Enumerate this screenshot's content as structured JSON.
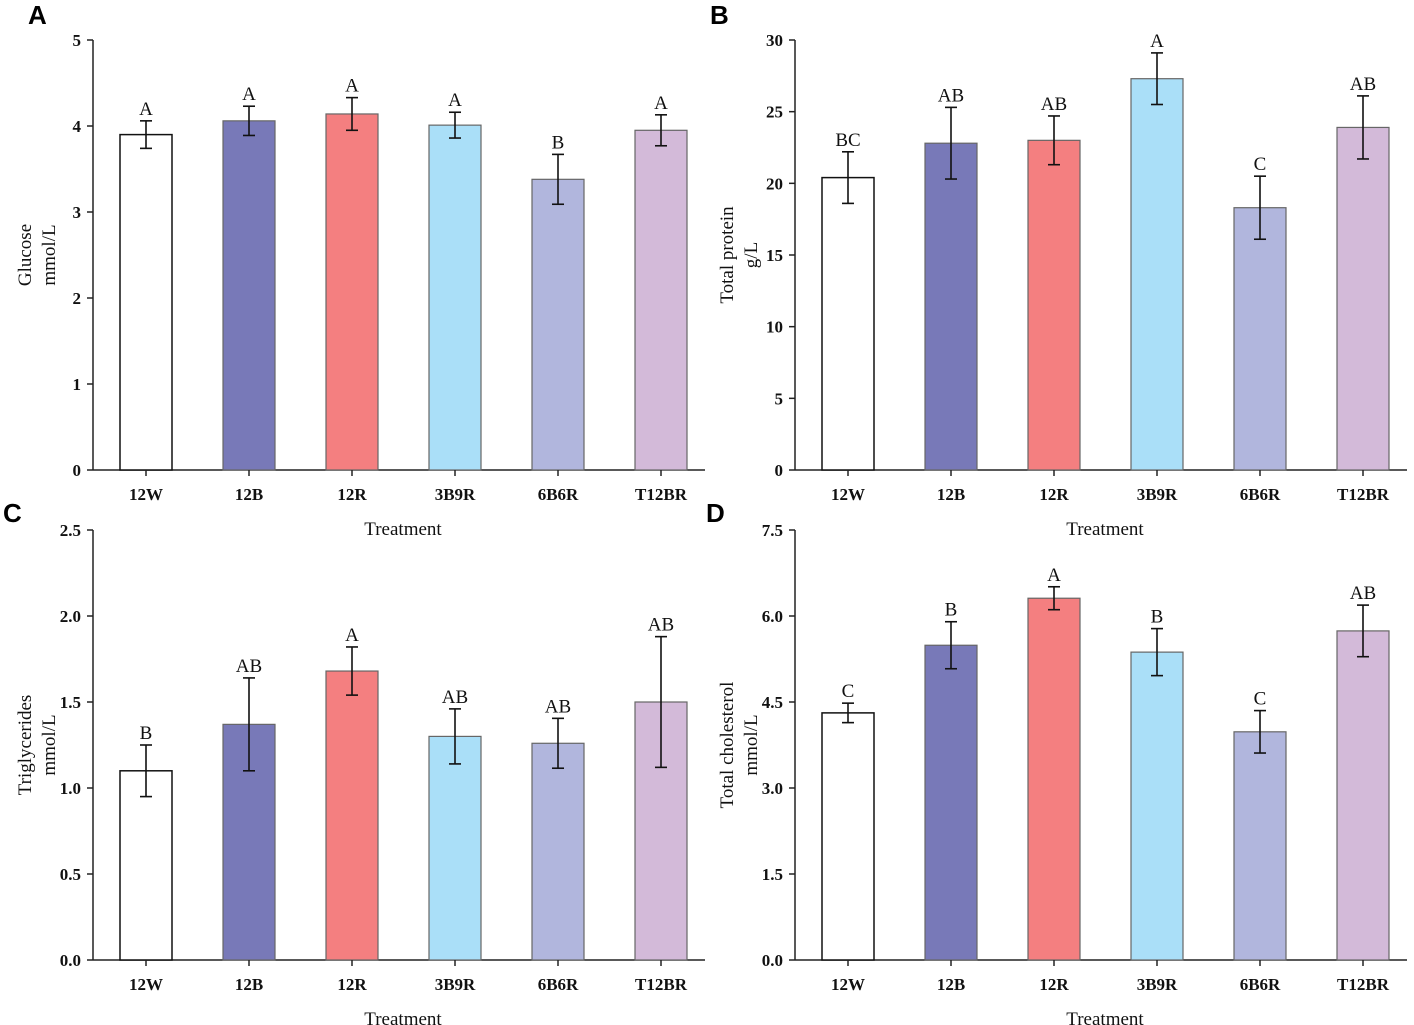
{
  "chart_data": [
    {
      "panel": "A",
      "type": "bar",
      "categories": [
        "12W",
        "12B",
        "12R",
        "3B9R",
        "6B6R",
        "T12BR"
      ],
      "values": [
        3.9,
        4.06,
        4.14,
        4.01,
        3.38,
        3.95
      ],
      "errors": [
        0.16,
        0.17,
        0.19,
        0.15,
        0.29,
        0.18
      ],
      "significance": [
        "A",
        "A",
        "A",
        "A",
        "B",
        "A"
      ],
      "ylabel": [
        "Glucose",
        "mmol/L"
      ],
      "xlabel": "Treatment",
      "ylim": [
        0,
        5
      ],
      "yticks": [
        "0",
        "1",
        "2",
        "3",
        "4",
        "5"
      ],
      "grid": false
    },
    {
      "panel": "B",
      "type": "bar",
      "categories": [
        "12W",
        "12B",
        "12R",
        "3B9R",
        "6B6R",
        "T12BR"
      ],
      "values": [
        20.4,
        22.8,
        23.0,
        27.3,
        18.3,
        23.9
      ],
      "errors": [
        1.8,
        2.5,
        1.7,
        1.8,
        2.2,
        2.2
      ],
      "significance": [
        "BC",
        "AB",
        "AB",
        "A",
        "C",
        "AB"
      ],
      "ylabel": [
        "Total protein",
        "g/L"
      ],
      "xlabel": "Treatment",
      "ylim": [
        0,
        30
      ],
      "yticks": [
        "0",
        "5",
        "10",
        "15",
        "20",
        "25",
        "30"
      ],
      "grid": false
    },
    {
      "panel": "C",
      "type": "bar",
      "categories": [
        "12W",
        "12B",
        "12R",
        "3B9R",
        "6B6R",
        "T12BR"
      ],
      "values": [
        1.1,
        1.37,
        1.68,
        1.3,
        1.26,
        1.5
      ],
      "errors": [
        0.15,
        0.27,
        0.14,
        0.16,
        0.145,
        0.38
      ],
      "significance": [
        "B",
        "AB",
        "A",
        "AB",
        "AB",
        "AB"
      ],
      "ylabel": [
        "Triglycerides",
        "mmol/L"
      ],
      "xlabel": "Treatment",
      "ylim": [
        0,
        2.5
      ],
      "yticks": [
        "0.0",
        "0.5",
        "1.0",
        "1.5",
        "2.0",
        "2.5"
      ],
      "grid": false
    },
    {
      "panel": "D",
      "type": "bar",
      "categories": [
        "12W",
        "12B",
        "12R",
        "3B9R",
        "6B6R",
        "T12BR"
      ],
      "values": [
        4.31,
        5.49,
        6.31,
        5.37,
        3.98,
        5.74
      ],
      "errors": [
        0.17,
        0.41,
        0.2,
        0.41,
        0.37,
        0.45
      ],
      "significance": [
        "C",
        "B",
        "A",
        "B",
        "C",
        "AB"
      ],
      "ylabel": [
        "Total cholesterol",
        "mmol/L"
      ],
      "xlabel": "Treatment",
      "ylim": [
        0,
        7.5
      ],
      "yticks": [
        "0.0",
        "1.5",
        "3.0",
        "4.5",
        "6.0",
        "7.5"
      ],
      "grid": false
    }
  ],
  "colors": [
    "#ffffff",
    "#7879b8",
    "#f47f80",
    "#aadff8",
    "#b1b6dd",
    "#d3bad9"
  ]
}
